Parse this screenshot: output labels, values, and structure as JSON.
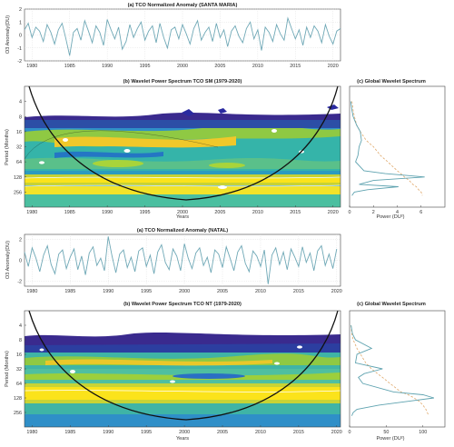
{
  "chart_data": [
    {
      "type": "line",
      "title": "(a) TCO Normalized Anomaly (SANTA MARIA)",
      "xlabel": "",
      "ylabel": "O3 Anomaly(DU)",
      "xlim": [
        1979,
        2021
      ],
      "ylim": [
        -2,
        2
      ],
      "xticks": [
        "1980",
        "1985",
        "1990",
        "1995",
        "2000",
        "2005",
        "2010",
        "2015",
        "2020"
      ],
      "yticks": [
        "2",
        "1",
        "0",
        "-1",
        "-2"
      ],
      "grid": true,
      "color": "#6fa8b6",
      "x": [
        1979.0,
        1979.5,
        1980.0,
        1980.5,
        1981.0,
        1981.5,
        1982.0,
        1982.5,
        1983.0,
        1983.5,
        1984.0,
        1984.5,
        1985.0,
        1985.5,
        1986.0,
        1986.5,
        1987.0,
        1987.5,
        1988.0,
        1988.5,
        1989.0,
        1989.5,
        1990.0,
        1990.5,
        1991.0,
        1991.5,
        1992.0,
        1992.5,
        1993.0,
        1993.5,
        1994.0,
        1994.5,
        1995.0,
        1995.5,
        1996.0,
        1996.5,
        1997.0,
        1997.5,
        1998.0,
        1998.5,
        1999.0,
        1999.5,
        2000.0,
        2000.5,
        2001.0,
        2001.5,
        2002.0,
        2002.5,
        2003.0,
        2003.5,
        2004.0,
        2004.5,
        2005.0,
        2005.5,
        2006.0,
        2006.5,
        2007.0,
        2007.5,
        2008.0,
        2008.5,
        2009.0,
        2009.5,
        2010.0,
        2010.5,
        2011.0,
        2011.5,
        2012.0,
        2012.5,
        2013.0,
        2013.5,
        2014.0,
        2014.5,
        2015.0,
        2015.5,
        2016.0,
        2016.5,
        2017.0,
        2017.5,
        2018.0,
        2018.5,
        2019.0,
        2019.5,
        2020.0,
        2020.5,
        2021.0
      ],
      "y": [
        0.4,
        0.9,
        -0.2,
        0.6,
        0.3,
        -0.5,
        0.8,
        0.2,
        -0.7,
        0.4,
        0.9,
        -0.3,
        -1.6,
        0.2,
        0.5,
        -0.4,
        1.1,
        0.3,
        -0.6,
        0.7,
        0.2,
        -0.8,
        1.2,
        0.4,
        -0.3,
        0.6,
        -1.1,
        -0.5,
        0.8,
        -0.2,
        0.5,
        1.0,
        -0.4,
        0.3,
        0.7,
        -0.6,
        0.9,
        -0.2,
        -1.0,
        0.4,
        0.6,
        -0.3,
        0.8,
        0.1,
        -0.7,
        0.5,
        1.1,
        -0.4,
        0.2,
        0.6,
        -0.5,
        0.9,
        -0.2,
        0.4,
        -0.9,
        0.3,
        0.7,
        -0.1,
        -0.6,
        0.5,
        1.0,
        -0.3,
        0.4,
        -1.2,
        0.6,
        0.2,
        -0.5,
        0.8,
        0.1,
        -0.4,
        1.3,
        0.5,
        -0.3,
        0.4,
        -0.8,
        0.6,
        -0.2,
        0.7,
        0.3,
        -0.6,
        0.8,
        -0.1,
        -0.7,
        0.3,
        0.5
      ]
    },
    {
      "type": "heatmap",
      "title": "(b) Wavelet Power Spectrum TCO SM (1979-2020)",
      "xlabel": "Years",
      "ylabel": "Period (Months)",
      "xlim": [
        1979,
        2021
      ],
      "ylim": [
        2,
        512
      ],
      "yscale": "log2",
      "xticks": [
        "1980",
        "1985",
        "1990",
        "1995",
        "2000",
        "2005",
        "2010",
        "2015",
        "2020"
      ],
      "yticks": [
        "4",
        "8",
        "16",
        "32",
        "64",
        "128",
        "256"
      ],
      "colormap": "parula",
      "description_bands": [
        {
          "period": 128,
          "level": "high"
        },
        {
          "period": 200,
          "level": "high"
        },
        {
          "period": 20,
          "level": "medium"
        }
      ]
    },
    {
      "type": "line",
      "title": "(c) Global Wavelet Spectrum",
      "xlabel": "Power (DU²)",
      "xlim": [
        0,
        8
      ],
      "xticks": [
        "0",
        "2",
        "4",
        "6"
      ],
      "series": [],
      "solid_color": "#5fa3b0",
      "dashed_color": "#e0a86a",
      "solid_period": [
        4,
        6,
        8,
        12,
        16,
        24,
        32,
        48,
        64,
        96,
        110,
        128,
        150,
        180,
        200,
        230,
        256,
        300
      ],
      "solid_power": [
        0.1,
        0.2,
        0.3,
        0.6,
        0.9,
        1.0,
        0.8,
        0.7,
        0.5,
        1.2,
        3.0,
        6.3,
        2.0,
        0.8,
        4.1,
        1.5,
        0.4,
        0.2
      ],
      "dashed_power": [
        0.2,
        0.3,
        0.4,
        0.6,
        0.9,
        1.4,
        2.0,
        2.6,
        3.2,
        4.0,
        4.3,
        4.6,
        5.0,
        5.3,
        5.6,
        5.8,
        6.0,
        6.1
      ]
    },
    {
      "type": "line",
      "title": "(a) TCO Normalized Anomaly (NATAL)",
      "xlabel": "",
      "ylabel": "O3 Anomaly(DU)",
      "xlim": [
        1979,
        2020.5
      ],
      "ylim": [
        -2.5,
        2.5
      ],
      "xticks": [
        "1980",
        "1985",
        "1990",
        "1995",
        "2000",
        "2005",
        "2010",
        "2015",
        "2020"
      ],
      "yticks": [
        "2",
        "0",
        "-2"
      ],
      "grid": true,
      "color": "#6fa8b6",
      "x": [
        1979.0,
        1979.5,
        1980.0,
        1980.5,
        1981.0,
        1981.5,
        1982.0,
        1982.5,
        1983.0,
        1983.5,
        1984.0,
        1984.5,
        1985.0,
        1985.5,
        1986.0,
        1986.5,
        1987.0,
        1987.5,
        1988.0,
        1988.5,
        1989.0,
        1989.5,
        1990.0,
        1990.5,
        1991.0,
        1991.5,
        1992.0,
        1992.5,
        1993.0,
        1993.5,
        1994.0,
        1994.5,
        1995.0,
        1995.5,
        1996.0,
        1996.5,
        1997.0,
        1997.5,
        1998.0,
        1998.5,
        1999.0,
        1999.5,
        2000.0,
        2000.5,
        2001.0,
        2001.5,
        2002.0,
        2002.5,
        2003.0,
        2003.5,
        2004.0,
        2004.5,
        2005.0,
        2005.5,
        2006.0,
        2006.5,
        2007.0,
        2007.5,
        2008.0,
        2008.5,
        2009.0,
        2009.5,
        2010.0,
        2010.5,
        2011.0,
        2011.5,
        2012.0,
        2012.5,
        2013.0,
        2013.5,
        2014.0,
        2014.5,
        2015.0,
        2015.5,
        2016.0,
        2016.5,
        2017.0,
        2017.5,
        2018.0,
        2018.5,
        2019.0,
        2019.5,
        2020.0
      ],
      "y": [
        0.8,
        -0.6,
        1.2,
        0.2,
        -1.1,
        0.5,
        1.4,
        -0.4,
        -1.3,
        0.6,
        1.0,
        -0.8,
        0.3,
        1.1,
        -0.9,
        0.4,
        -1.4,
        0.7,
        1.3,
        -0.5,
        0.2,
        -1.0,
        2.3,
        0.4,
        -1.2,
        0.6,
        1.0,
        -0.7,
        0.3,
        -1.1,
        0.9,
        1.2,
        -0.6,
        0.5,
        -1.3,
        0.8,
        1.5,
        -0.2,
        -0.9,
        1.1,
        0.4,
        -1.0,
        1.6,
        0.2,
        -0.8,
        0.7,
        1.2,
        -0.5,
        0.3,
        -1.2,
        1.0,
        0.6,
        -0.7,
        1.3,
        0.2,
        -1.0,
        0.8,
        1.4,
        -0.3,
        -1.1,
        0.9,
        0.4,
        -0.6,
        1.0,
        -2.3,
        0.5,
        1.2,
        -0.4,
        0.8,
        -0.9,
        1.1,
        0.3,
        -0.6,
        1.3,
        -0.2,
        0.7,
        -1.0,
        0.9,
        1.4,
        -0.5,
        0.6,
        -0.8,
        1.1
      ]
    },
    {
      "type": "heatmap",
      "title": "(b) Wavelet Power Spectrum TCO NT (1979-2020)",
      "xlabel": "Years",
      "ylabel": "Period (Months)",
      "xlim": [
        1979,
        2020.5
      ],
      "ylim": [
        2,
        512
      ],
      "yscale": "log2",
      "xticks": [
        "1980",
        "1985",
        "1990",
        "1995",
        "2000",
        "2005",
        "2010",
        "2015",
        "2020"
      ],
      "yticks": [
        "4",
        "8",
        "16",
        "32",
        "64",
        "128",
        "256"
      ],
      "colormap": "parula",
      "description_bands": [
        {
          "period": 128,
          "level": "high"
        },
        {
          "period": 32,
          "level": "medium"
        },
        {
          "period": 12,
          "level": "medium"
        }
      ]
    },
    {
      "type": "line",
      "title": "(c) Global Wavelet Spectrum",
      "xlabel": "Power (DU²)",
      "xlim": [
        0,
        130
      ],
      "xticks": [
        "0",
        "50",
        "100"
      ],
      "series": [],
      "solid_color": "#5fa3b0",
      "dashed_color": "#e0a86a",
      "solid_period": [
        4,
        6,
        8,
        12,
        16,
        24,
        32,
        40,
        48,
        64,
        96,
        110,
        128,
        150,
        180,
        220,
        256,
        300
      ],
      "solid_power": [
        2,
        4,
        8,
        30,
        10,
        8,
        45,
        20,
        12,
        18,
        60,
        100,
        115,
        80,
        40,
        10,
        5,
        3
      ],
      "dashed_power": [
        2,
        3,
        5,
        10,
        15,
        22,
        30,
        38,
        45,
        55,
        70,
        80,
        88,
        95,
        100,
        104,
        106,
        108
      ]
    }
  ]
}
